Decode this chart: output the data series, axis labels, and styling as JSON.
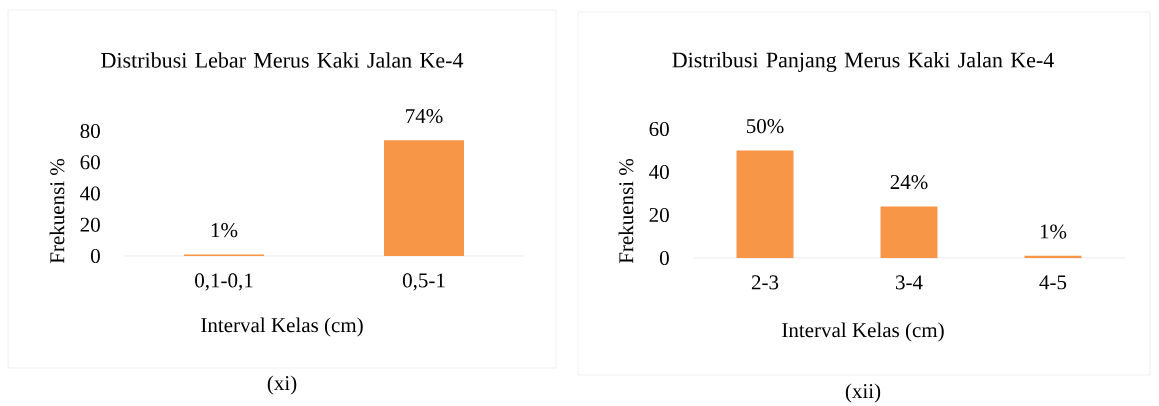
{
  "chart_data": [
    {
      "type": "bar",
      "title": "Distribusi Lebar Merus Kaki Jalan Ke-4",
      "xlabel": "Interval Kelas (cm)",
      "ylabel": "Frekuensi %",
      "categories": [
        "0,1-0,1",
        "0,5-1"
      ],
      "values": [
        1,
        74
      ],
      "value_labels": [
        "1%",
        "74%"
      ],
      "color": "#f79646",
      "ylim": [
        0,
        80
      ],
      "yticks": [
        0,
        20,
        40,
        60,
        80
      ],
      "annotations": [
        "(xi)"
      ]
    },
    {
      "type": "bar",
      "title": "Distribusi Panjang Merus Kaki Jalan Ke-4",
      "xlabel": "Interval Kelas (cm)",
      "ylabel": "Frekuensi %",
      "categories": [
        "2-3",
        "3-4",
        "4-5"
      ],
      "values": [
        50,
        24,
        1
      ],
      "value_labels": [
        "50%",
        "24%",
        "1%"
      ],
      "color": "#f79646",
      "ylim": [
        0,
        60
      ],
      "yticks": [
        0,
        20,
        40,
        60
      ],
      "annotations": [
        "(xii)"
      ]
    }
  ]
}
